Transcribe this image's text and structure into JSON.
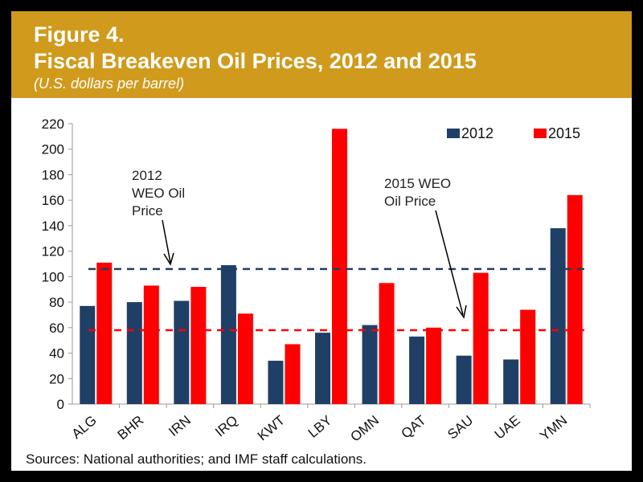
{
  "header": {
    "figure_number": "Figure 4.",
    "title": "Fiscal Breakeven Oil Prices, 2012 and 2015",
    "subtitle": "(U.S. dollars per barrel)"
  },
  "annotations": {
    "weo_2012": [
      "2012",
      "WEO Oil",
      "Price"
    ],
    "weo_2015": [
      "2015 WEO",
      "Oil Price"
    ]
  },
  "source": "Sources: National authorities; and IMF staff calculations.",
  "colors": {
    "series_2012": "#1f3f66",
    "series_2015": "#ff0000",
    "header_bg": "#d09a1c"
  },
  "chart_data": {
    "type": "bar",
    "title": "Fiscal Breakeven Oil Prices, 2012 and 2015",
    "ylabel": "",
    "xlabel": "",
    "ylim": [
      0,
      220
    ],
    "yticks": [
      0,
      20,
      40,
      60,
      80,
      100,
      120,
      140,
      160,
      180,
      200,
      220
    ],
    "categories": [
      "ALG",
      "BHR",
      "IRN",
      "IRQ",
      "KWT",
      "LBY",
      "OMN",
      "QAT",
      "SAU",
      "UAE",
      "YMN"
    ],
    "series": [
      {
        "name": "2012",
        "values": [
          77,
          80,
          81,
          109,
          34,
          56,
          62,
          53,
          38,
          35,
          138
        ]
      },
      {
        "name": "2015",
        "values": [
          111,
          93,
          92,
          71,
          47,
          216,
          95,
          60,
          103,
          74,
          164
        ]
      }
    ],
    "reference_lines": [
      {
        "value": 106,
        "series": "2012"
      },
      {
        "value": 58,
        "series": "2015"
      }
    ],
    "legend": "top-right",
    "grid": false
  }
}
